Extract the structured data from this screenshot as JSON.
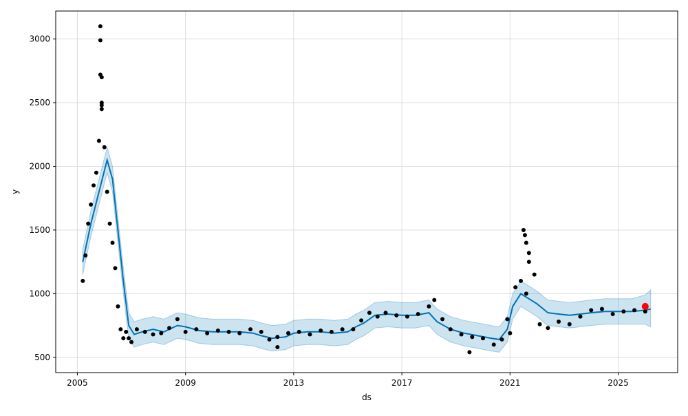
{
  "chart_data": {
    "type": "line",
    "title": "",
    "xlabel": "ds",
    "ylabel": "y",
    "xlim": [
      2004.2,
      2027.2
    ],
    "ylim": [
      380,
      3220
    ],
    "x_ticks": [
      2005,
      2009,
      2013,
      2017,
      2021,
      2025
    ],
    "x_tick_labels": [
      "2005",
      "2009",
      "2013",
      "2017",
      "2021",
      "2025"
    ],
    "y_ticks": [
      500,
      1000,
      1500,
      2000,
      2500,
      3000
    ],
    "y_tick_labels": [
      "500",
      "1000",
      "1500",
      "2000",
      "2500",
      "3000"
    ],
    "grid": true,
    "colors": {
      "observed": "#000000",
      "forecast_line": "#0072B2",
      "uncertainty_band": "#0072B2",
      "highlight": "#ff0000",
      "grid": "#dddddd"
    },
    "series": [
      {
        "kind": "forecast",
        "x": [
          2005.2,
          2005.5,
          2005.8,
          2006.1,
          2006.3,
          2006.5,
          2006.7,
          2006.9,
          2007.1,
          2007.4,
          2007.8,
          2008.2,
          2008.7,
          2009.0,
          2009.5,
          2010.0,
          2010.5,
          2011.0,
          2011.5,
          2011.8,
          2012.2,
          2012.7,
          2013.0,
          2013.5,
          2014.0,
          2014.5,
          2015.0,
          2015.3,
          2015.6,
          2016.0,
          2016.5,
          2017.0,
          2017.5,
          2018.0,
          2018.3,
          2018.8,
          2019.3,
          2019.8,
          2020.3,
          2020.6,
          2020.9,
          2021.1,
          2021.4,
          2021.7,
          2022.0,
          2022.4,
          2022.8,
          2023.2,
          2023.6,
          2024.0,
          2024.5,
          2025.0,
          2025.5,
          2026.0,
          2026.2
        ],
        "yhat": [
          1250,
          1550,
          1800,
          2050,
          1900,
          1500,
          1100,
          750,
          680,
          700,
          720,
          700,
          750,
          740,
          710,
          700,
          700,
          700,
          690,
          670,
          650,
          660,
          690,
          700,
          700,
          690,
          700,
          740,
          770,
          830,
          840,
          830,
          830,
          850,
          780,
          720,
          690,
          670,
          650,
          640,
          720,
          900,
          1000,
          960,
          920,
          850,
          840,
          830,
          840,
          850,
          860,
          860,
          860,
          870,
          880
        ],
        "lower": [
          1150,
          1450,
          1700,
          1950,
          1800,
          1400,
          1000,
          650,
          580,
          600,
          620,
          600,
          650,
          640,
          610,
          600,
          600,
          600,
          590,
          570,
          550,
          560,
          590,
          600,
          600,
          590,
          600,
          640,
          670,
          730,
          740,
          730,
          730,
          750,
          680,
          620,
          590,
          570,
          550,
          540,
          620,
          800,
          900,
          860,
          820,
          750,
          740,
          730,
          740,
          750,
          760,
          760,
          760,
          760,
          740
        ],
        "upper": [
          1350,
          1650,
          1900,
          2150,
          2000,
          1600,
          1200,
          850,
          780,
          800,
          820,
          800,
          850,
          840,
          810,
          800,
          800,
          800,
          790,
          770,
          750,
          760,
          790,
          800,
          800,
          790,
          800,
          840,
          870,
          930,
          940,
          930,
          930,
          950,
          880,
          820,
          790,
          770,
          750,
          740,
          820,
          1000,
          1100,
          1060,
          1020,
          950,
          940,
          930,
          940,
          950,
          960,
          960,
          960,
          990,
          1030
        ]
      },
      {
        "kind": "observed",
        "x": [
          2005.2,
          2005.3,
          2005.4,
          2005.5,
          2005.6,
          2005.7,
          2005.8,
          2005.9,
          2006.0,
          2006.1,
          2006.2,
          2006.3,
          2006.4,
          2006.5,
          2006.6,
          2006.7,
          2006.8,
          2006.9,
          2007.0,
          2007.2,
          2007.5,
          2007.8,
          2008.1,
          2008.4,
          2008.7,
          2009.0,
          2009.4,
          2009.8,
          2010.2,
          2010.6,
          2011.0,
          2011.4,
          2011.8,
          2012.1,
          2012.4,
          2012.8,
          2013.2,
          2013.6,
          2014.0,
          2014.4,
          2014.8,
          2015.2,
          2015.5,
          2015.8,
          2016.1,
          2016.4,
          2016.8,
          2017.2,
          2017.6,
          2018.0,
          2018.2,
          2018.5,
          2018.8,
          2019.2,
          2019.6,
          2020.0,
          2020.4,
          2020.7,
          2021.0,
          2021.2,
          2021.4,
          2021.6,
          2021.7,
          2021.9,
          2022.1,
          2022.4,
          2022.8,
          2023.2,
          2023.6,
          2024.0,
          2024.4,
          2024.8,
          2025.2,
          2025.6,
          2026.0
        ],
        "y": [
          1100,
          1300,
          1550,
          1700,
          1850,
          1950,
          2200,
          2450,
          2150,
          1800,
          1550,
          1400,
          1200,
          900,
          720,
          650,
          700,
          650,
          620,
          720,
          700,
          680,
          690,
          730,
          800,
          700,
          720,
          690,
          710,
          700,
          690,
          720,
          700,
          640,
          660,
          690,
          700,
          680,
          710,
          700,
          720,
          720,
          790,
          850,
          820,
          850,
          830,
          820,
          840,
          900,
          950,
          800,
          720,
          680,
          660,
          650,
          600,
          640,
          690,
          1050,
          1100,
          1000,
          1250,
          1150,
          760,
          730,
          780,
          760,
          820,
          870,
          880,
          840,
          860,
          870,
          860
        ]
      },
      {
        "kind": "outlier",
        "x": [
          2005.85,
          2005.85,
          2005.85,
          2005.9,
          2005.9,
          2005.9,
          2021.5,
          2021.55,
          2021.6,
          2021.7,
          2012.4,
          2019.5,
          2020.9
        ],
        "y": [
          3100,
          2990,
          2720,
          2700,
          2500,
          2480,
          1500,
          1460,
          1400,
          1320,
          580,
          540,
          800
        ]
      },
      {
        "kind": "highlight",
        "x": [
          2026.0
        ],
        "y": [
          900
        ]
      }
    ]
  }
}
